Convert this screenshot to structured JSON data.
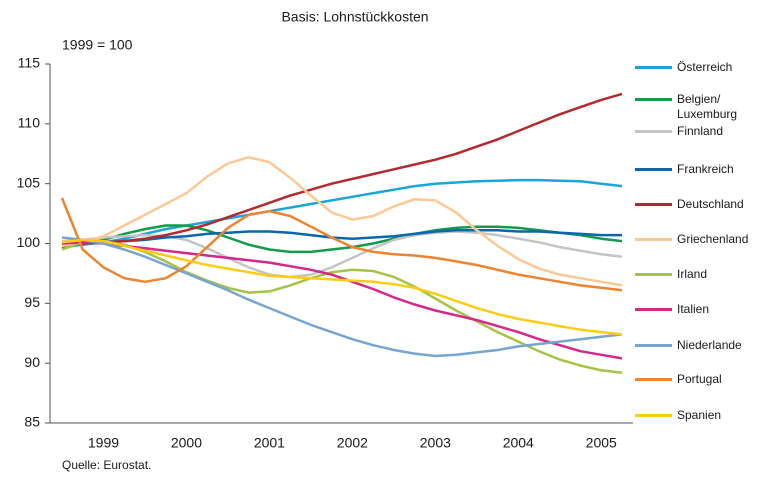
{
  "chart_data": {
    "type": "line",
    "title": "Basis: Lohnstückkosten",
    "subtitle": "1999 = 100",
    "source": "Quelle: Eurostat.",
    "categories": [
      null,
      null,
      "1999",
      null,
      null,
      null,
      "2000",
      null,
      null,
      null,
      "2001",
      null,
      null,
      null,
      "2002",
      null,
      null,
      null,
      "2003",
      null,
      null,
      null,
      "2004",
      null,
      null,
      null,
      "2005",
      null
    ],
    "ylim": [
      85,
      115
    ],
    "yticks": [
      85,
      90,
      95,
      100,
      105,
      110,
      115
    ],
    "grid": false,
    "legend": "right",
    "series": [
      {
        "name": "Österreich",
        "color": "#1aa5d8",
        "values": [
          99.7,
          99.9,
          100.1,
          100.4,
          100.8,
          101.2,
          101.5,
          101.8,
          102.1,
          102.4,
          102.7,
          103.0,
          103.3,
          103.6,
          103.9,
          104.2,
          104.5,
          104.8,
          105.0,
          105.1,
          105.2,
          105.25,
          105.3,
          105.3,
          105.25,
          105.2,
          105.0,
          104.8
        ]
      },
      {
        "name": "Belgien/ Luxemburg",
        "color": "#129b48",
        "values": [
          99.6,
          100.0,
          100.3,
          100.8,
          101.2,
          101.5,
          101.5,
          101.1,
          100.5,
          99.9,
          99.5,
          99.3,
          99.3,
          99.5,
          99.7,
          100.0,
          100.4,
          100.8,
          101.1,
          101.3,
          101.4,
          101.4,
          101.3,
          101.1,
          100.9,
          100.7,
          100.4,
          100.2
        ]
      },
      {
        "name": "Finnland",
        "color": "#c4c4c6",
        "values": [
          100.2,
          100.3,
          100.5,
          100.6,
          100.7,
          100.6,
          100.3,
          99.6,
          98.8,
          98.0,
          97.4,
          97.2,
          97.4,
          98.0,
          98.8,
          99.6,
          100.3,
          100.7,
          100.9,
          101.0,
          100.9,
          100.7,
          100.4,
          100.1,
          99.7,
          99.4,
          99.1,
          98.9
        ]
      },
      {
        "name": "Frankreich",
        "color": "#0a67ab",
        "values": [
          99.9,
          100.0,
          100.1,
          100.2,
          100.3,
          100.5,
          100.6,
          100.8,
          100.9,
          101.0,
          101.0,
          100.9,
          100.7,
          100.5,
          100.4,
          100.5,
          100.6,
          100.8,
          101.0,
          101.1,
          101.1,
          101.1,
          101.0,
          101.0,
          100.9,
          100.8,
          100.7,
          100.7
        ]
      },
      {
        "name": "Deutschland",
        "color": "#b22a30",
        "values": [
          100.0,
          100.0,
          100.1,
          100.2,
          100.4,
          100.7,
          101.1,
          101.6,
          102.2,
          102.8,
          103.4,
          104.0,
          104.5,
          105.0,
          105.4,
          105.8,
          106.2,
          106.6,
          107.0,
          107.5,
          108.1,
          108.7,
          109.4,
          110.1,
          110.8,
          111.4,
          112.0,
          112.5
        ]
      },
      {
        "name": "Griechenland",
        "color": "#fdc893",
        "values": [
          99.8,
          100.1,
          100.6,
          101.5,
          102.4,
          103.3,
          104.2,
          105.6,
          106.7,
          107.2,
          106.8,
          105.5,
          104.0,
          102.6,
          102.0,
          102.3,
          103.1,
          103.7,
          103.6,
          102.6,
          101.1,
          99.8,
          98.7,
          97.9,
          97.4,
          97.1,
          96.8,
          96.5
        ]
      },
      {
        "name": "Irland",
        "color": "#a6c444",
        "values": [
          99.5,
          100.1,
          100.2,
          99.9,
          99.3,
          98.5,
          97.6,
          96.9,
          96.3,
          95.9,
          96.0,
          96.5,
          97.1,
          97.6,
          97.8,
          97.7,
          97.2,
          96.4,
          95.4,
          94.4,
          93.5,
          92.6,
          91.8,
          91.0,
          90.3,
          89.8,
          89.4,
          89.2
        ]
      },
      {
        "name": "Italien",
        "color": "#d3288c",
        "values": [
          100.0,
          100.1,
          100.0,
          99.8,
          99.6,
          99.4,
          99.2,
          99.0,
          98.8,
          98.6,
          98.4,
          98.1,
          97.8,
          97.4,
          96.8,
          96.2,
          95.5,
          94.9,
          94.4,
          94.0,
          93.6,
          93.1,
          92.6,
          92.0,
          91.5,
          91.0,
          90.7,
          90.4
        ]
      },
      {
        "name": "Niederlande",
        "color": "#77a5d1",
        "values": [
          100.5,
          100.3,
          100.0,
          99.5,
          98.9,
          98.2,
          97.5,
          96.8,
          96.1,
          95.3,
          94.6,
          93.9,
          93.2,
          92.6,
          92.0,
          91.5,
          91.1,
          90.8,
          90.6,
          90.7,
          90.9,
          91.1,
          91.4,
          91.6,
          91.8,
          92.0,
          92.2,
          92.4
        ]
      },
      {
        "name": "Portugal",
        "color": "#ec8430",
        "values": [
          103.8,
          99.5,
          98.0,
          97.1,
          96.8,
          97.1,
          98.1,
          99.7,
          101.3,
          102.4,
          102.7,
          102.3,
          101.4,
          100.5,
          99.7,
          99.3,
          99.1,
          99.0,
          98.8,
          98.5,
          98.2,
          97.8,
          97.4,
          97.1,
          96.8,
          96.5,
          96.3,
          96.1
        ]
      },
      {
        "name": "Spanien",
        "color": "#fdcc0f",
        "values": [
          100.1,
          100.3,
          100.2,
          99.8,
          99.4,
          99.0,
          98.6,
          98.2,
          97.9,
          97.6,
          97.3,
          97.2,
          97.1,
          97.0,
          96.9,
          96.8,
          96.6,
          96.3,
          95.8,
          95.2,
          94.6,
          94.1,
          93.7,
          93.4,
          93.1,
          92.8,
          92.6,
          92.4
        ]
      }
    ]
  }
}
